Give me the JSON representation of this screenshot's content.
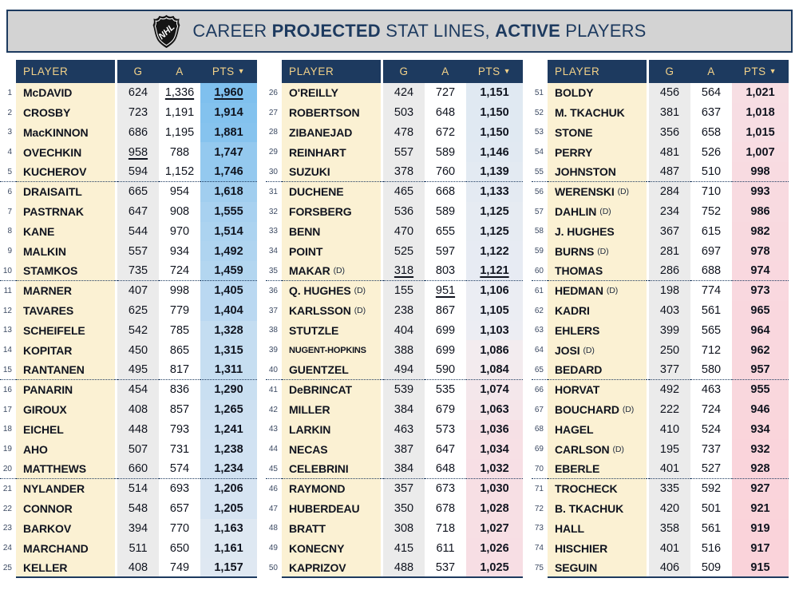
{
  "title": {
    "full": "CAREER PROJECTED STAT LINES, ACTIVE PLAYERS",
    "segments": [
      {
        "text": "CAREER ",
        "bold": false
      },
      {
        "text": "PROJECTED",
        "bold": true
      },
      {
        "text": " STAT LINES, ",
        "bold": false
      },
      {
        "text": "ACTIVE",
        "bold": true
      },
      {
        "text": " PLAYERS",
        "bold": false
      }
    ],
    "logo": "nhl-shield"
  },
  "columns": {
    "player": "PLAYER",
    "g": "G",
    "a": "A",
    "pts": "PTS"
  },
  "sort": {
    "column": "PTS",
    "direction": "desc",
    "arrow": "▼"
  },
  "colors": {
    "navy": "#1d3a5f",
    "gold": "#f3d289",
    "cream": "#fbf1d3",
    "gray_col": "#ebebeb",
    "title_bar_bg": "#d3d3d3",
    "ink": "#10141f"
  },
  "heatmap": {
    "max_color": "#7fc0ee",
    "mid_color": "#f2f0f3",
    "min_color": "#fad3da",
    "max_value": 1960,
    "mid_value": 1090,
    "min_value": 915,
    "blue_exponent": 0.7,
    "pink_exponent": 0.5
  },
  "layout": {
    "rows_per_group": 25,
    "group_count": 3,
    "separator_every": 5
  },
  "chart_data": {
    "type": "table",
    "title": "CAREER PROJECTED STAT LINES, ACTIVE PLAYERS",
    "columns": [
      "PLAYER",
      "G",
      "A",
      "PTS"
    ],
    "sort": "PTS desc",
    "notes": "d=true marks defensemen (D); u lists underlined record values; heatmap on PTS column blue(high)-white-pink(low)",
    "rows": [
      {
        "rank": 1,
        "player": "McDAVID",
        "g": 624,
        "a": 1336,
        "pts": 1960,
        "u": [
          "a",
          "pts"
        ]
      },
      {
        "rank": 2,
        "player": "CROSBY",
        "g": 723,
        "a": 1191,
        "pts": 1914
      },
      {
        "rank": 3,
        "player": "MacKINNON",
        "g": 686,
        "a": 1195,
        "pts": 1881
      },
      {
        "rank": 4,
        "player": "OVECHKIN",
        "g": 958,
        "a": 788,
        "pts": 1747,
        "u": [
          "g"
        ]
      },
      {
        "rank": 5,
        "player": "KUCHEROV",
        "g": 594,
        "a": 1152,
        "pts": 1746
      },
      {
        "rank": 6,
        "player": "DRAISAITL",
        "g": 665,
        "a": 954,
        "pts": 1618
      },
      {
        "rank": 7,
        "player": "PASTRNAK",
        "g": 647,
        "a": 908,
        "pts": 1555
      },
      {
        "rank": 8,
        "player": "KANE",
        "g": 544,
        "a": 970,
        "pts": 1514
      },
      {
        "rank": 9,
        "player": "MALKIN",
        "g": 557,
        "a": 934,
        "pts": 1492
      },
      {
        "rank": 10,
        "player": "STAMKOS",
        "g": 735,
        "a": 724,
        "pts": 1459
      },
      {
        "rank": 11,
        "player": "MARNER",
        "g": 407,
        "a": 998,
        "pts": 1405
      },
      {
        "rank": 12,
        "player": "TAVARES",
        "g": 625,
        "a": 779,
        "pts": 1404
      },
      {
        "rank": 13,
        "player": "SCHEIFELE",
        "g": 542,
        "a": 785,
        "pts": 1328
      },
      {
        "rank": 14,
        "player": "KOPITAR",
        "g": 450,
        "a": 865,
        "pts": 1315
      },
      {
        "rank": 15,
        "player": "RANTANEN",
        "g": 495,
        "a": 817,
        "pts": 1311
      },
      {
        "rank": 16,
        "player": "PANARIN",
        "g": 454,
        "a": 836,
        "pts": 1290
      },
      {
        "rank": 17,
        "player": "GIROUX",
        "g": 408,
        "a": 857,
        "pts": 1265
      },
      {
        "rank": 18,
        "player": "EICHEL",
        "g": 448,
        "a": 793,
        "pts": 1241
      },
      {
        "rank": 19,
        "player": "AHO",
        "g": 507,
        "a": 731,
        "pts": 1238
      },
      {
        "rank": 20,
        "player": "MATTHEWS",
        "g": 660,
        "a": 574,
        "pts": 1234
      },
      {
        "rank": 21,
        "player": "NYLANDER",
        "g": 514,
        "a": 693,
        "pts": 1206
      },
      {
        "rank": 22,
        "player": "CONNOR",
        "g": 548,
        "a": 657,
        "pts": 1205
      },
      {
        "rank": 23,
        "player": "BARKOV",
        "g": 394,
        "a": 770,
        "pts": 1163
      },
      {
        "rank": 24,
        "player": "MARCHAND",
        "g": 511,
        "a": 650,
        "pts": 1161
      },
      {
        "rank": 25,
        "player": "KELLER",
        "g": 408,
        "a": 749,
        "pts": 1157
      },
      {
        "rank": 26,
        "player": "O'REILLY",
        "g": 424,
        "a": 727,
        "pts": 1151
      },
      {
        "rank": 27,
        "player": "ROBERTSON",
        "g": 503,
        "a": 648,
        "pts": 1150
      },
      {
        "rank": 28,
        "player": "ZIBANEJAD",
        "g": 478,
        "a": 672,
        "pts": 1150
      },
      {
        "rank": 29,
        "player": "REINHART",
        "g": 557,
        "a": 589,
        "pts": 1146
      },
      {
        "rank": 30,
        "player": "SUZUKI",
        "g": 378,
        "a": 760,
        "pts": 1139
      },
      {
        "rank": 31,
        "player": "DUCHENE",
        "g": 465,
        "a": 668,
        "pts": 1133
      },
      {
        "rank": 32,
        "player": "FORSBERG",
        "g": 536,
        "a": 589,
        "pts": 1125
      },
      {
        "rank": 33,
        "player": "BENN",
        "g": 470,
        "a": 655,
        "pts": 1125
      },
      {
        "rank": 34,
        "player": "POINT",
        "g": 525,
        "a": 597,
        "pts": 1122
      },
      {
        "rank": 35,
        "player": "MAKAR",
        "d": true,
        "g": 318,
        "a": 803,
        "pts": 1121,
        "u": [
          "g",
          "pts"
        ]
      },
      {
        "rank": 36,
        "player": "Q. HUGHES",
        "d": true,
        "g": 155,
        "a": 951,
        "pts": 1106,
        "u": [
          "a"
        ]
      },
      {
        "rank": 37,
        "player": "KARLSSON",
        "d": true,
        "g": 238,
        "a": 867,
        "pts": 1105
      },
      {
        "rank": 38,
        "player": "STUTZLE",
        "g": 404,
        "a": 699,
        "pts": 1103
      },
      {
        "rank": 39,
        "player": "NUGENT-HOPKINS",
        "g": 388,
        "a": 699,
        "pts": 1086
      },
      {
        "rank": 40,
        "player": "GUENTZEL",
        "g": 494,
        "a": 590,
        "pts": 1084
      },
      {
        "rank": 41,
        "player": "DeBRINCAT",
        "g": 539,
        "a": 535,
        "pts": 1074
      },
      {
        "rank": 42,
        "player": "MILLER",
        "g": 384,
        "a": 679,
        "pts": 1063
      },
      {
        "rank": 43,
        "player": "LARKIN",
        "g": 463,
        "a": 573,
        "pts": 1036
      },
      {
        "rank": 44,
        "player": "NECAS",
        "g": 387,
        "a": 647,
        "pts": 1034
      },
      {
        "rank": 45,
        "player": "CELEBRINI",
        "g": 384,
        "a": 648,
        "pts": 1032
      },
      {
        "rank": 46,
        "player": "RAYMOND",
        "g": 357,
        "a": 673,
        "pts": 1030
      },
      {
        "rank": 47,
        "player": "HUBERDEAU",
        "g": 350,
        "a": 678,
        "pts": 1028
      },
      {
        "rank": 48,
        "player": "BRATT",
        "g": 308,
        "a": 718,
        "pts": 1027
      },
      {
        "rank": 49,
        "player": "KONECNY",
        "g": 415,
        "a": 611,
        "pts": 1026
      },
      {
        "rank": 50,
        "player": "KAPRIZOV",
        "g": 488,
        "a": 537,
        "pts": 1025
      },
      {
        "rank": 51,
        "player": "BOLDY",
        "g": 456,
        "a": 564,
        "pts": 1021
      },
      {
        "rank": 52,
        "player": "M. TKACHUK",
        "g": 381,
        "a": 637,
        "pts": 1018
      },
      {
        "rank": 53,
        "player": "STONE",
        "g": 356,
        "a": 658,
        "pts": 1015
      },
      {
        "rank": 54,
        "player": "PERRY",
        "g": 481,
        "a": 526,
        "pts": 1007
      },
      {
        "rank": 55,
        "player": "JOHNSTON",
        "g": 487,
        "a": 510,
        "pts": 998
      },
      {
        "rank": 56,
        "player": "WERENSKI",
        "d": true,
        "g": 284,
        "a": 710,
        "pts": 993
      },
      {
        "rank": 57,
        "player": "DAHLIN",
        "d": true,
        "g": 234,
        "a": 752,
        "pts": 986
      },
      {
        "rank": 58,
        "player": "J. HUGHES",
        "g": 367,
        "a": 615,
        "pts": 982
      },
      {
        "rank": 59,
        "player": "BURNS",
        "d": true,
        "g": 281,
        "a": 697,
        "pts": 978
      },
      {
        "rank": 60,
        "player": "THOMAS",
        "g": 286,
        "a": 688,
        "pts": 974
      },
      {
        "rank": 61,
        "player": "HEDMAN",
        "d": true,
        "g": 198,
        "a": 774,
        "pts": 973
      },
      {
        "rank": 62,
        "player": "KADRI",
        "g": 403,
        "a": 561,
        "pts": 965
      },
      {
        "rank": 63,
        "player": "EHLERS",
        "g": 399,
        "a": 565,
        "pts": 964
      },
      {
        "rank": 64,
        "player": "JOSI",
        "d": true,
        "g": 250,
        "a": 712,
        "pts": 962
      },
      {
        "rank": 65,
        "player": "BEDARD",
        "g": 377,
        "a": 580,
        "pts": 957
      },
      {
        "rank": 66,
        "player": "HORVAT",
        "g": 492,
        "a": 463,
        "pts": 955
      },
      {
        "rank": 67,
        "player": "BOUCHARD",
        "d": true,
        "g": 222,
        "a": 724,
        "pts": 946
      },
      {
        "rank": 68,
        "player": "HAGEL",
        "g": 410,
        "a": 524,
        "pts": 934
      },
      {
        "rank": 69,
        "player": "CARLSON",
        "d": true,
        "g": 195,
        "a": 737,
        "pts": 932
      },
      {
        "rank": 70,
        "player": "EBERLE",
        "g": 401,
        "a": 527,
        "pts": 928
      },
      {
        "rank": 71,
        "player": "TROCHECK",
        "g": 335,
        "a": 592,
        "pts": 927
      },
      {
        "rank": 72,
        "player": "B. TKACHUK",
        "g": 420,
        "a": 501,
        "pts": 921
      },
      {
        "rank": 73,
        "player": "HALL",
        "g": 358,
        "a": 561,
        "pts": 919
      },
      {
        "rank": 74,
        "player": "HISCHIER",
        "g": 401,
        "a": 516,
        "pts": 917
      },
      {
        "rank": 75,
        "player": "SEGUIN",
        "g": 406,
        "a": 509,
        "pts": 915
      }
    ]
  }
}
